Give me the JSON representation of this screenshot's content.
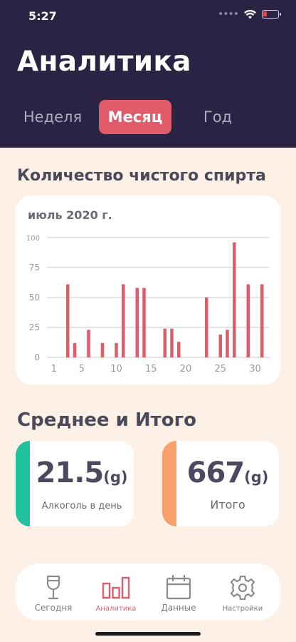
{
  "status": {
    "time": "5:27"
  },
  "title": "Аналитика",
  "tabs": {
    "week": "Неделя",
    "month": "Месяц",
    "year": "Год"
  },
  "alcohol_section": {
    "title": "Количество чистого спирта"
  },
  "chart": {
    "subtitle": "июль 2020 г."
  },
  "chart_data": {
    "type": "bar",
    "title": "июль 2020 г.",
    "x": [
      3,
      4,
      6,
      8,
      10,
      11,
      13,
      14,
      17,
      18,
      19,
      23,
      25,
      26,
      27,
      29,
      31
    ],
    "values": [
      61,
      12,
      23,
      12,
      12,
      61,
      58,
      58,
      24,
      24,
      13,
      50,
      19,
      23,
      96,
      61,
      61
    ],
    "xlim": [
      0,
      32
    ],
    "ylim": [
      0,
      100
    ],
    "xticks": [
      1,
      5,
      10,
      15,
      20,
      25,
      30
    ],
    "yticks": [
      0,
      25,
      50,
      75,
      100
    ],
    "grid": true,
    "bar_color": "#e05c6b"
  },
  "summary": {
    "title": "Среднее и Итого",
    "average": {
      "value": "21.5",
      "unit": "(g)",
      "label": "Алкоголь в день",
      "accent": "#1fc19e"
    },
    "total": {
      "value": "667",
      "unit": "(g)",
      "label": "Итого",
      "accent": "#f7a06b"
    }
  },
  "nav": {
    "today": "Сегодня",
    "analytics": "Аналитика",
    "data": "Данные",
    "settings": "Настройки"
  },
  "colors": {
    "header_bg": "#2a2344",
    "accent": "#e05c6b",
    "background": "#fdf0e6"
  }
}
